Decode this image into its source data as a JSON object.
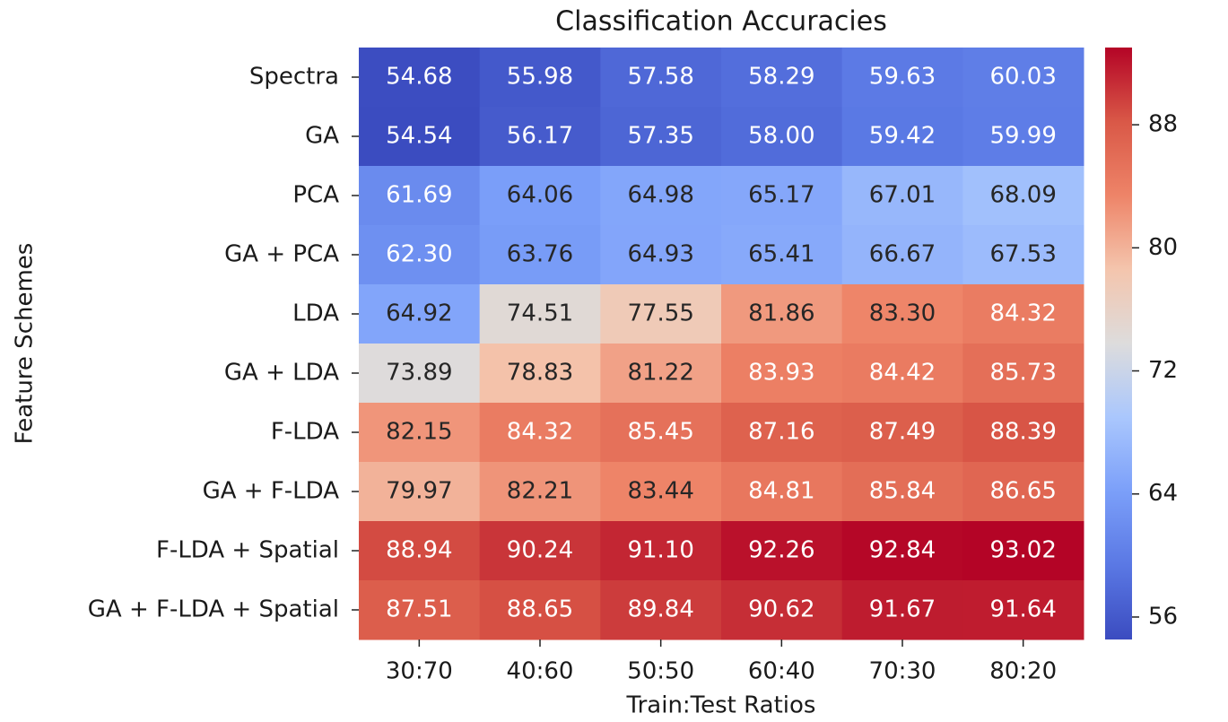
{
  "chart_data": {
    "type": "heatmap",
    "title": "Classification Accuracies",
    "x_label": "Train:Test Ratios",
    "y_label": "Feature Schemes",
    "categories": [
      "30:70",
      "40:60",
      "50:50",
      "60:40",
      "70:30",
      "80:20"
    ],
    "rows": [
      "Spectra",
      "GA",
      "PCA",
      "GA + PCA",
      "LDA",
      "GA + LDA",
      "F-LDA",
      "GA + F-LDA",
      "F-LDA + Spatial",
      "GA + F-LDA + Spatial"
    ],
    "values": [
      [
        54.68,
        55.98,
        57.58,
        58.29,
        59.63,
        60.03
      ],
      [
        54.54,
        56.17,
        57.35,
        58.0,
        59.42,
        59.99
      ],
      [
        61.69,
        64.06,
        64.98,
        65.17,
        67.01,
        68.09
      ],
      [
        62.3,
        63.76,
        64.93,
        65.41,
        66.67,
        67.53
      ],
      [
        64.92,
        74.51,
        77.55,
        81.86,
        83.3,
        84.32
      ],
      [
        73.89,
        78.83,
        81.22,
        83.93,
        84.42,
        85.73
      ],
      [
        82.15,
        84.32,
        85.45,
        87.16,
        87.49,
        88.39
      ],
      [
        79.97,
        82.21,
        83.44,
        84.81,
        85.84,
        86.65
      ],
      [
        88.94,
        90.24,
        91.1,
        92.26,
        92.84,
        93.02
      ],
      [
        87.51,
        88.65,
        89.84,
        90.62,
        91.67,
        91.64
      ]
    ],
    "value_labels": [
      [
        "54.68",
        "55.98",
        "57.58",
        "58.29",
        "59.63",
        "60.03"
      ],
      [
        "54.54",
        "56.17",
        "57.35",
        "58.00",
        "59.42",
        "59.99"
      ],
      [
        "61.69",
        "64.06",
        "64.98",
        "65.17",
        "67.01",
        "68.09"
      ],
      [
        "62.30",
        "63.76",
        "64.93",
        "65.41",
        "66.67",
        "67.53"
      ],
      [
        "64.92",
        "74.51",
        "77.55",
        "81.86",
        "83.30",
        "84.32"
      ],
      [
        "73.89",
        "78.83",
        "81.22",
        "83.93",
        "84.42",
        "85.73"
      ],
      [
        "82.15",
        "84.32",
        "85.45",
        "87.16",
        "87.49",
        "88.39"
      ],
      [
        "79.97",
        "82.21",
        "83.44",
        "84.81",
        "85.84",
        "86.65"
      ],
      [
        "88.94",
        "90.24",
        "91.10",
        "92.26",
        "92.84",
        "93.02"
      ],
      [
        "87.51",
        "88.65",
        "89.84",
        "90.62",
        "91.67",
        "91.64"
      ]
    ],
    "colormap": "coolwarm",
    "clim": [
      54.54,
      93.02
    ],
    "cticks": [
      56,
      64,
      72,
      80,
      88
    ]
  }
}
